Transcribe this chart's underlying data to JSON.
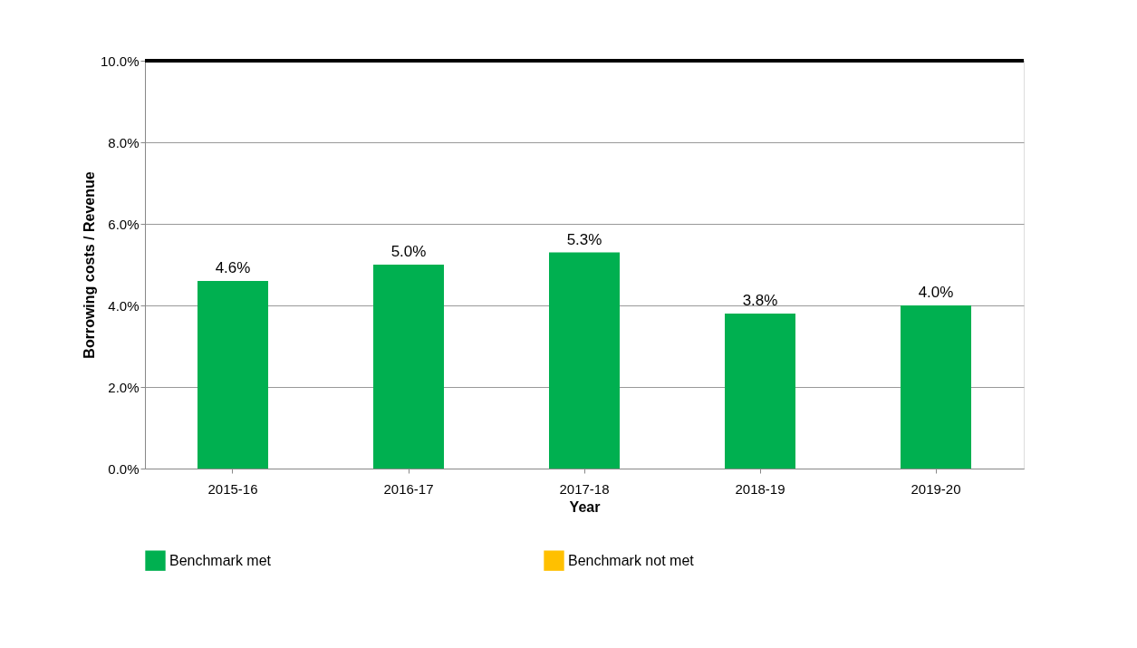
{
  "chart_data": {
    "type": "bar",
    "categories": [
      "2015-16",
      "2016-17",
      "2017-18",
      "2018-19",
      "2019-20"
    ],
    "series": [
      {
        "name": "Benchmark met",
        "color": "#00b050",
        "values": [
          4.6,
          5.0,
          5.3,
          3.8,
          4.0
        ],
        "value_labels": [
          "4.6%",
          "5.0%",
          "5.3%",
          "3.8%",
          "4.0%"
        ]
      },
      {
        "name": "Benchmark not met",
        "color": "#ffc000",
        "values": [
          null,
          null,
          null,
          null,
          null
        ]
      }
    ],
    "xlabel": "Year",
    "ylabel": "Borrowing costs / Revenue",
    "ylim": [
      0,
      10
    ],
    "yticks": [
      {
        "value": 0,
        "label": "0.0%"
      },
      {
        "value": 2,
        "label": "2.0%"
      },
      {
        "value": 4,
        "label": "4.0%"
      },
      {
        "value": 6,
        "label": "6.0%"
      },
      {
        "value": 8,
        "label": "8.0%"
      },
      {
        "value": 10,
        "label": "10.0%"
      }
    ],
    "ref_lines": [
      {
        "axis": "y",
        "value": 10,
        "color": "#000000"
      }
    ],
    "grid": "y",
    "legend": "bottom"
  }
}
